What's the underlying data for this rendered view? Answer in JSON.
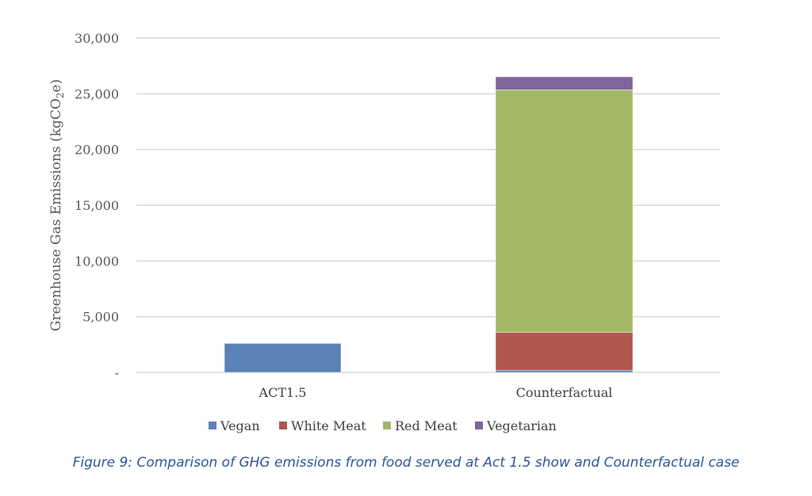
{
  "chart_data": {
    "type": "bar",
    "stacked": true,
    "categories": [
      "ACT1.5",
      "Counterfactual"
    ],
    "series": [
      {
        "name": "Vegan",
        "color": "#5a82b8",
        "values": [
          2600,
          200
        ]
      },
      {
        "name": "White Meat",
        "color": "#b0574f",
        "values": [
          0,
          3400
        ]
      },
      {
        "name": "Red Meat",
        "color": "#a2b865",
        "values": [
          0,
          21760
        ]
      },
      {
        "name": "Vegetarian",
        "color": "#7f659b",
        "values": [
          0,
          1160
        ]
      }
    ],
    "ylabel": "Greenhouse Gas Emissions (kgCO2e)",
    "ylabel_parts": {
      "main": "Greenhouse Gas Emissions (kgCO",
      "sub": "2",
      "end": "e)"
    },
    "ylim": [
      0,
      30000
    ],
    "yticks": [
      0,
      5000,
      10000,
      15000,
      20000,
      25000,
      30000
    ],
    "ytick_labels": [
      "-",
      "5,000",
      "10,000",
      "15,000",
      "20,000",
      "25,000",
      "30,000"
    ],
    "grid": true,
    "legend_position": "bottom"
  },
  "caption": "Figure 9: Comparison of GHG emissions from food served at Act 1.5 show and Counterfactual case"
}
